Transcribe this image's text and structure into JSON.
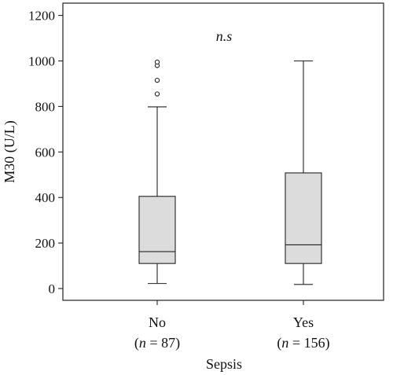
{
  "chart_data": {
    "type": "box",
    "ylabel": "M30 (U/L)",
    "xlabel": "Sepsis",
    "ylim": [
      -30,
      1230
    ],
    "yticks": [
      0,
      200,
      400,
      600,
      800,
      1000,
      1200
    ],
    "grid": false,
    "annotation": "n.s",
    "groups": [
      {
        "label": "No",
        "n_prefix": "(",
        "n_var": "n",
        "n_suffix": " = 87)",
        "whisker_low": 22,
        "q1": 110,
        "median": 162,
        "q3": 405,
        "whisker_high": 798,
        "outliers": [
          855,
          915,
          980,
          995
        ]
      },
      {
        "label": "Yes",
        "n_prefix": "(",
        "n_var": "n",
        "n_suffix": " = 156)",
        "whisker_low": 18,
        "q1": 110,
        "median": 192,
        "q3": 508,
        "whisker_high": 1000,
        "outliers": []
      }
    ]
  }
}
